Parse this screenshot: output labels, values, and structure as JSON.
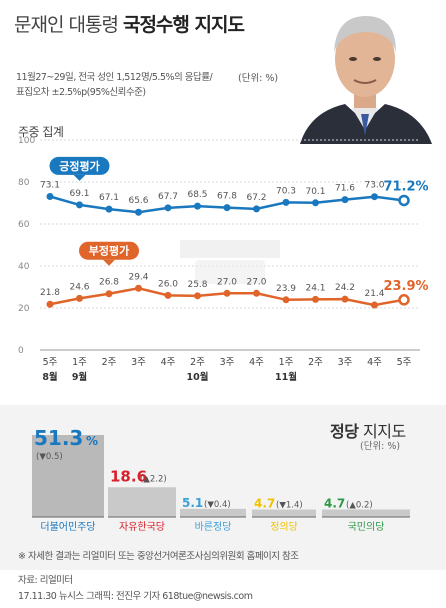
{
  "header": {
    "title_plain": "문재인 대통령 ",
    "title_bold": "국정수행 지지도",
    "subtitle_line1": "11월27~29일, 전국 성인 1,512명/5.5%의 응답률/",
    "subtitle_line2": "표집오차 ±2.5%p(95%신뢰수준)",
    "unit": "(단위: %)",
    "weekly_label": "주중 집계"
  },
  "chart_data": [
    {
      "type": "line",
      "ylim": [
        0,
        100
      ],
      "yticks": [
        0,
        20,
        40,
        60,
        80,
        100
      ],
      "grid": true,
      "categories": [
        "5주",
        "1주",
        "2주",
        "3주",
        "4주",
        "2주",
        "3주",
        "4주",
        "1주",
        "2주",
        "3주",
        "4주",
        "5주"
      ],
      "month_labels": [
        {
          "index": 0,
          "label": "8월"
        },
        {
          "index": 1,
          "label": "9월"
        },
        {
          "index": 5,
          "label": "10월"
        },
        {
          "index": 8,
          "label": "11월"
        }
      ],
      "series": [
        {
          "name": "긍정평가",
          "color": "#1a78bf",
          "values": [
            73.1,
            69.1,
            67.1,
            65.6,
            67.7,
            68.5,
            67.8,
            67.2,
            70.3,
            70.1,
            71.6,
            73.0,
            71.2
          ],
          "labels": [
            "73.1",
            "69.1",
            "67.1",
            "65.6",
            "67.7",
            "68.5",
            "67.8",
            "67.2",
            "70.3",
            "70.1",
            "71.6",
            "73.0",
            "71.2%"
          ]
        },
        {
          "name": "부정평가",
          "color": "#e0652a",
          "values": [
            21.8,
            24.6,
            26.8,
            29.4,
            26.0,
            25.8,
            27.0,
            27.0,
            23.9,
            24.1,
            24.2,
            21.4,
            23.9
          ],
          "labels": [
            "21.8",
            "24.6",
            "26.8",
            "29.4",
            "26.0",
            "25.8",
            "27.0",
            "27.0",
            "23.9",
            "24.1",
            "24.2",
            "21.4",
            "23.9%"
          ]
        }
      ]
    },
    {
      "type": "bar",
      "title_bold": "정당",
      "title_plain": " 지지도",
      "unit": "(단위: %)",
      "categories": [
        "더불어민주당",
        "자유한국당",
        "바른정당",
        "정의당",
        "국민의당"
      ],
      "values": [
        51.3,
        18.6,
        5.1,
        4.7,
        4.7
      ],
      "value_labels": [
        "51.3",
        "18.6",
        "5.1",
        "4.7",
        "4.7"
      ],
      "changes": [
        "(▼0.5)",
        "(▲2.2)",
        "(▼0.4)",
        "(▼1.4)",
        "(▲0.2)"
      ],
      "colors": [
        "#1a78bf",
        "#d7202b",
        "#3aa0d8",
        "#f2c200",
        "#2e9a48"
      ]
    }
  ],
  "footnote": "※ 자세한 결과는 리얼미터 또는 중앙선거여론조사심의위원회 홈페이지 참조",
  "source": "자료: 리얼미터",
  "credit": "17.11.30 뉴시스 그래픽: 전진우 기자 618tue@newsis.com"
}
